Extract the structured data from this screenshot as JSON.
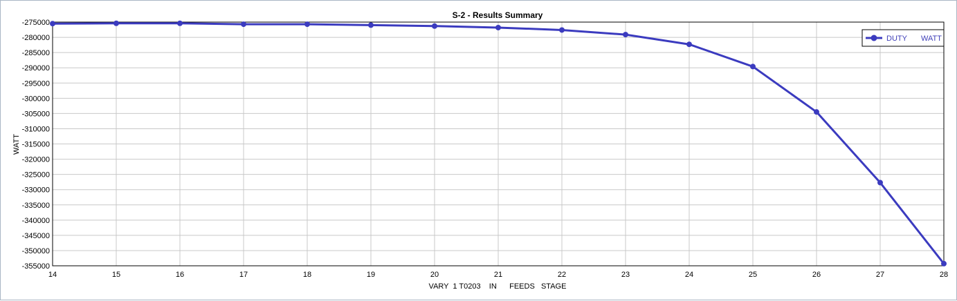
{
  "chart_data": {
    "type": "line",
    "title": "S-2 - Results Summary",
    "xlabel": "VARY  1 T0203    IN      FEEDS   STAGE",
    "ylabel": "WATT",
    "xlim": [
      14,
      28
    ],
    "ylim": [
      -355000,
      -275000
    ],
    "y_tick_step": 5000,
    "x_ticks": [
      14,
      15,
      16,
      17,
      18,
      19,
      20,
      21,
      22,
      23,
      24,
      25,
      26,
      27,
      28
    ],
    "grid": true,
    "legend_position": "top-right",
    "series": [
      {
        "name": "DUTY",
        "unit": "WATT",
        "color": "#3b3bbf",
        "x": [
          14,
          15,
          16,
          17,
          18,
          19,
          20,
          21,
          22,
          23,
          24,
          25,
          26,
          27,
          28
        ],
        "y": [
          -275500,
          -275400,
          -275400,
          -275700,
          -275700,
          -276000,
          -276300,
          -276800,
          -277600,
          -279100,
          -282300,
          -289600,
          -304500,
          -327700,
          -354300
        ]
      }
    ]
  }
}
